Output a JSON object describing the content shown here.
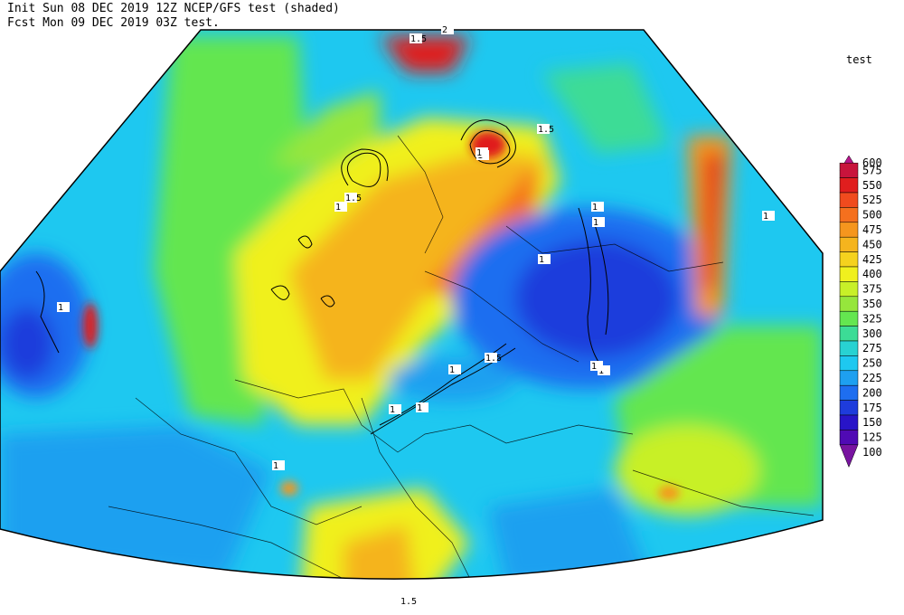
{
  "header": {
    "line1": "Init  Sun 08 DEC 2019 12Z  NCEP/GFS test (shaded)",
    "line2": "Fcst Mon 09 DEC 2019 03Z test."
  },
  "legend": {
    "title": "test",
    "levels": [
      {
        "value": 600,
        "color": "#b8168c"
      },
      {
        "value": 575,
        "color": "#c8143c"
      },
      {
        "value": 550,
        "color": "#e01e1e"
      },
      {
        "value": 525,
        "color": "#f04b1e"
      },
      {
        "value": 500,
        "color": "#f5701e"
      },
      {
        "value": 475,
        "color": "#f5961e"
      },
      {
        "value": 450,
        "color": "#f5b41e"
      },
      {
        "value": 425,
        "color": "#f5d21e"
      },
      {
        "value": 400,
        "color": "#f0f01e"
      },
      {
        "value": 375,
        "color": "#c8f028"
      },
      {
        "value": 350,
        "color": "#96e63c"
      },
      {
        "value": 325,
        "color": "#64e650"
      },
      {
        "value": 300,
        "color": "#3cdc96"
      },
      {
        "value": 275,
        "color": "#28d2d2"
      },
      {
        "value": 250,
        "color": "#1ec8f0"
      },
      {
        "value": 225,
        "color": "#1ea0f0"
      },
      {
        "value": 200,
        "color": "#1e6ef0"
      },
      {
        "value": 175,
        "color": "#1e3cdc"
      },
      {
        "value": 150,
        "color": "#2814c8"
      },
      {
        "value": 125,
        "color": "#500ab4"
      },
      {
        "value": 100,
        "color": "#7814a0"
      }
    ]
  },
  "contour_labels": [
    "1.5",
    "2",
    "1.5",
    "1",
    "1.5",
    "1",
    "1",
    "1",
    "1",
    "1",
    "1",
    "1.5",
    "1",
    "1",
    "1",
    "1",
    "1",
    "1",
    "1",
    "1.5"
  ]
}
